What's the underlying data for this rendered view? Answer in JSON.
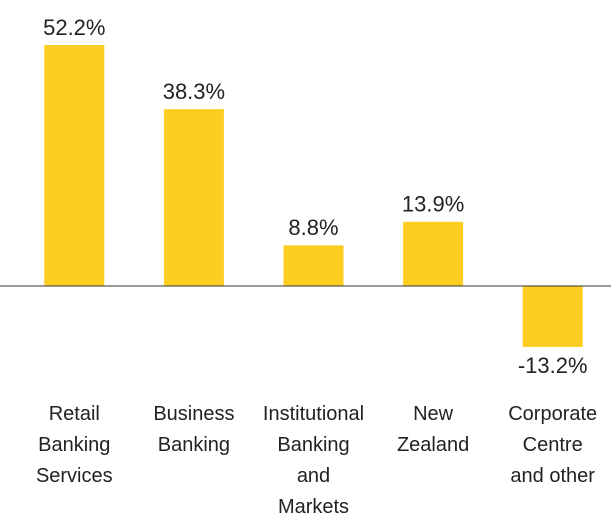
{
  "chart_data": {
    "type": "bar",
    "categories": [
      "Retail\nBanking\nServices",
      "Business\nBanking",
      "Institutional\nBanking\nand\nMarkets",
      "New\nZealand",
      "Corporate\nCentre\nand other"
    ],
    "values": [
      52.2,
      38.3,
      8.8,
      13.9,
      -13.2
    ],
    "value_labels": [
      "52.2%",
      "38.3%",
      "8.8%",
      "13.9%",
      "-13.2%"
    ],
    "color": "#fdcd21"
  }
}
